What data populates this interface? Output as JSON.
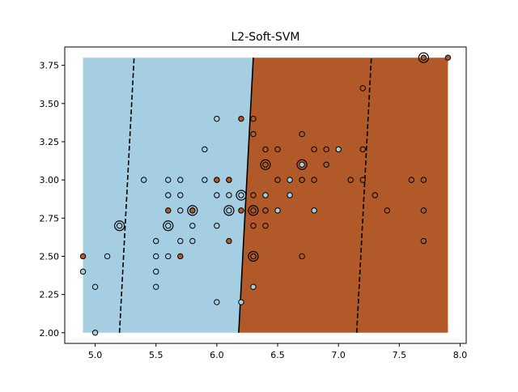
{
  "chart_data": {
    "type": "scatter",
    "title": "L2-Soft-SVM",
    "xlabel": "",
    "ylabel": "",
    "xlim": [
      4.75,
      8.05
    ],
    "ylim": [
      1.93,
      3.87
    ],
    "x_ticks": [
      "5.0",
      "5.5",
      "6.0",
      "6.5",
      "7.0",
      "7.5",
      "8.0"
    ],
    "y_ticks": [
      "2.00",
      "2.25",
      "2.50",
      "2.75",
      "3.00",
      "3.25",
      "3.50",
      "3.75"
    ],
    "grid": false,
    "region_bounds": {
      "x": [
        4.9,
        7.9
      ],
      "y": [
        2.0,
        3.8
      ]
    },
    "decision_boundary": [
      [
        6.18,
        2.0
      ],
      [
        6.3,
        3.8
      ]
    ],
    "margin_lines": [
      [
        [
          5.2,
          2.0
        ],
        [
          5.32,
          3.8
        ]
      ],
      [
        [
          7.15,
          2.0
        ],
        [
          7.27,
          3.8
        ]
      ]
    ],
    "colors": {
      "class_a": "#a6cee3",
      "class_b": "#b15928",
      "boundary": "#000000",
      "point_edge": "#000000"
    },
    "series": [
      {
        "values": [
          [
            5.0,
            2.0
          ],
          [
            5.0,
            2.3
          ],
          [
            4.9,
            2.4
          ],
          [
            5.1,
            2.5
          ],
          [
            5.5,
            2.3
          ],
          [
            5.5,
            2.4
          ],
          [
            5.5,
            2.5
          ],
          [
            5.5,
            2.6
          ],
          [
            5.6,
            2.5
          ],
          [
            5.7,
            2.6
          ],
          [
            5.8,
            2.6
          ],
          [
            5.2,
            2.7
          ],
          [
            5.6,
            2.7
          ],
          [
            5.8,
            2.7
          ],
          [
            5.6,
            2.9
          ],
          [
            5.7,
            2.8
          ],
          [
            5.8,
            2.8
          ],
          [
            5.6,
            3.0
          ],
          [
            5.7,
            3.0
          ],
          [
            5.7,
            2.9
          ],
          [
            5.4,
            3.0
          ],
          [
            5.9,
            3.0
          ],
          [
            6.0,
            2.9
          ],
          [
            6.0,
            3.0
          ],
          [
            5.9,
            3.2
          ],
          [
            6.0,
            3.4
          ],
          [
            6.1,
            2.8
          ],
          [
            6.1,
            2.9
          ],
          [
            6.1,
            3.0
          ],
          [
            6.2,
            2.9
          ],
          [
            6.0,
            2.7
          ],
          [
            6.0,
            2.2
          ],
          [
            6.2,
            2.2
          ],
          [
            6.3,
            2.3
          ],
          [
            6.3,
            2.5
          ],
          [
            6.4,
            2.9
          ],
          [
            6.5,
            2.8
          ],
          [
            6.6,
            2.9
          ],
          [
            6.6,
            3.0
          ],
          [
            6.7,
            3.0
          ],
          [
            6.7,
            3.1
          ],
          [
            6.8,
            2.8
          ],
          [
            7.0,
            3.2
          ]
        ]
      },
      {
        "values": [
          [
            4.9,
            2.5
          ],
          [
            5.6,
            2.8
          ],
          [
            5.7,
            2.5
          ],
          [
            5.8,
            2.8
          ],
          [
            6.0,
            3.0
          ],
          [
            6.1,
            2.6
          ],
          [
            6.1,
            3.0
          ],
          [
            6.2,
            2.8
          ],
          [
            6.2,
            3.4
          ],
          [
            6.3,
            2.5
          ],
          [
            6.3,
            2.7
          ],
          [
            6.3,
            2.8
          ],
          [
            6.3,
            2.9
          ],
          [
            6.3,
            3.3
          ],
          [
            6.3,
            3.4
          ],
          [
            6.4,
            2.7
          ],
          [
            6.4,
            2.8
          ],
          [
            6.4,
            3.1
          ],
          [
            6.4,
            3.2
          ],
          [
            6.5,
            3.0
          ],
          [
            6.5,
            3.2
          ],
          [
            6.7,
            2.5
          ],
          [
            6.7,
            3.0
          ],
          [
            6.7,
            3.3
          ],
          [
            6.8,
            3.0
          ],
          [
            6.8,
            3.2
          ],
          [
            6.9,
            3.1
          ],
          [
            6.9,
            3.2
          ],
          [
            7.1,
            3.0
          ],
          [
            7.2,
            3.0
          ],
          [
            7.2,
            3.2
          ],
          [
            7.2,
            3.6
          ],
          [
            7.3,
            2.9
          ],
          [
            7.4,
            2.8
          ],
          [
            7.6,
            3.0
          ],
          [
            7.7,
            2.6
          ],
          [
            7.7,
            2.8
          ],
          [
            7.7,
            3.0
          ],
          [
            7.7,
            3.8
          ],
          [
            7.9,
            3.8
          ]
        ]
      }
    ],
    "support_vectors": [
      [
        5.2,
        2.7
      ],
      [
        5.6,
        2.7
      ],
      [
        5.8,
        2.8
      ],
      [
        6.1,
        2.8
      ],
      [
        6.2,
        2.9
      ],
      [
        6.3,
        2.8
      ],
      [
        6.3,
        2.5
      ],
      [
        6.4,
        3.1
      ],
      [
        6.7,
        3.1
      ],
      [
        7.7,
        3.8
      ]
    ]
  }
}
